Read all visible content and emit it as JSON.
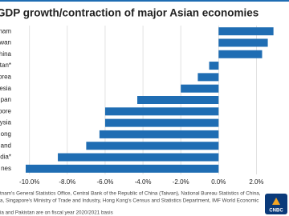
{
  "chart_data": {
    "type": "hbar",
    "title": "GDP growth/contraction of major Asian economies",
    "categories": [
      "nam",
      "wan",
      "hina",
      "tan*",
      "orea",
      "esia",
      "pan",
      "pore",
      "ysia",
      "ong",
      "and",
      "dia*",
      "nes"
    ],
    "values": [
      2.9,
      2.6,
      2.3,
      -0.5,
      -1.1,
      -2.0,
      -4.3,
      -6.0,
      -6.0,
      -6.3,
      -7.0,
      -8.5,
      -10.2
    ],
    "color": "#1f6db3",
    "xlim": [
      -10.2,
      3.0
    ],
    "xticks": [
      {
        "value": -10,
        "label": "-10.0%"
      },
      {
        "value": -8,
        "label": "-8.0%"
      },
      {
        "value": -6,
        "label": "-6.0%"
      },
      {
        "value": -4,
        "label": "-4.0%"
      },
      {
        "value": -2,
        "label": "-2.0%"
      },
      {
        "value": 0,
        "label": "0.0%"
      },
      {
        "value": 2,
        "label": "2.0%"
      }
    ],
    "grid": true,
    "source": [
      "tnam's General Statistics Office, Central Bank of the Republic of China (Taiwan), National Bureau Statistics of China,",
      "a, Singapore's Ministry of Trade and Industry, Hong Kong's Census and Statistics Department, IMF World Economic",
      "ia and Pakistan are on fiscal year 2020/2021 basis"
    ],
    "logo": "CNBC"
  }
}
